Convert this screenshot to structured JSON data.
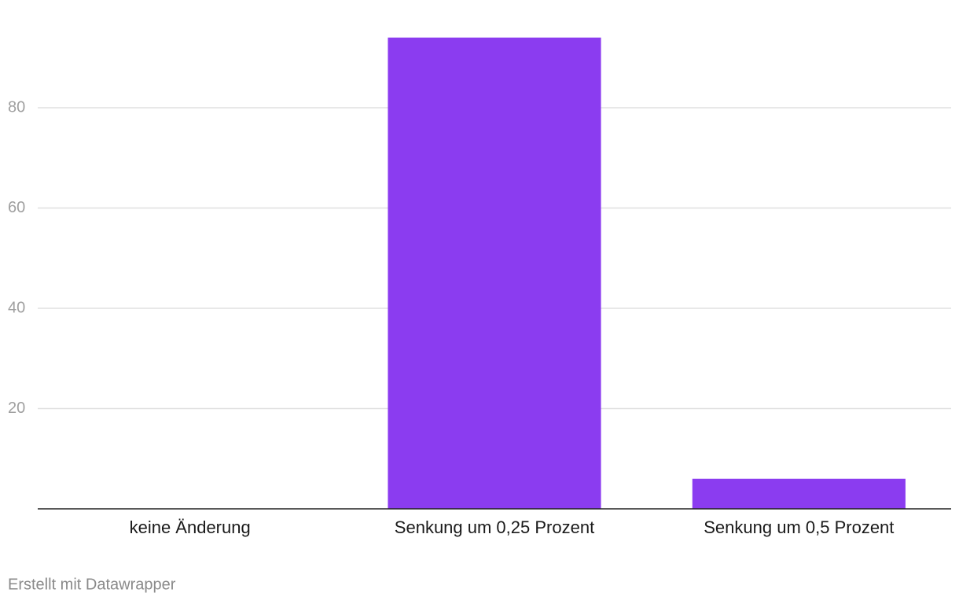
{
  "chart_data": {
    "type": "bar",
    "categories": [
      "keine Änderung",
      "Senkung um 0,25 Prozent",
      "Senkung um 0,5 Prozent"
    ],
    "values": [
      0,
      94,
      6
    ],
    "color": "#8b3cf0",
    "ylim": [
      0,
      96
    ],
    "yticks": [
      20,
      40,
      60,
      80
    ],
    "grid": true,
    "credit": "Erstellt mit Datawrapper"
  }
}
